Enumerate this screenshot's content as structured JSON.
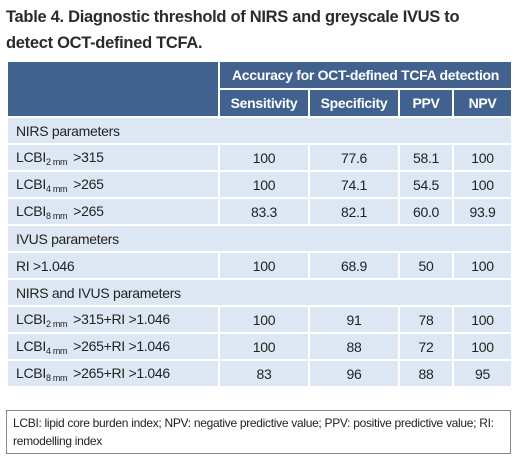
{
  "title": "Table 4. Diagnostic threshold of NIRS and greyscale IVUS to detect OCT-defined TCFA.",
  "table": {
    "group_header": "Accuracy for OCT-defined TCFA detection",
    "columns": [
      "Sensitivity",
      "Specificity",
      "PPV",
      "NPV"
    ],
    "sections": [
      {
        "title": "NIRS parameters",
        "rows": [
          {
            "label": {
              "name": "LCBI",
              "sub": "2 mm",
              "rest": ">315"
            },
            "values": [
              "100",
              "77.6",
              "58.1",
              "100"
            ]
          },
          {
            "label": {
              "name": "LCBI",
              "sub": "4 mm",
              "rest": ">265"
            },
            "values": [
              "100",
              "74.1",
              "54.5",
              "100"
            ]
          },
          {
            "label": {
              "name": "LCBI",
              "sub": "8 mm",
              "rest": ">265"
            },
            "values": [
              "83.3",
              "82.1",
              "60.0",
              "93.9"
            ]
          }
        ]
      },
      {
        "title": "IVUS parameters",
        "rows": [
          {
            "label": {
              "name": "RI >1.046"
            },
            "values": [
              "100",
              "68.9",
              "50",
              "100"
            ]
          }
        ]
      },
      {
        "title": "NIRS and IVUS parameters",
        "rows": [
          {
            "label": {
              "name": "LCBI",
              "sub": "2 mm",
              "rest": ">315+RI >1.046"
            },
            "values": [
              "100",
              "91",
              "78",
              "100"
            ]
          },
          {
            "label": {
              "name": "LCBI",
              "sub": "4 mm",
              "rest": ">265+RI >1.046"
            },
            "values": [
              "100",
              "88",
              "72",
              "100"
            ]
          },
          {
            "label": {
              "name": "LCBI",
              "sub": "8 mm",
              "rest": ">265+RI >1.046"
            },
            "values": [
              "83",
              "96",
              "88",
              "95"
            ]
          }
        ]
      }
    ]
  },
  "footnote": "LCBI: lipid core burden index; NPV: negative predictive value; PPV: positive predictive value; RI: remodelling index"
}
